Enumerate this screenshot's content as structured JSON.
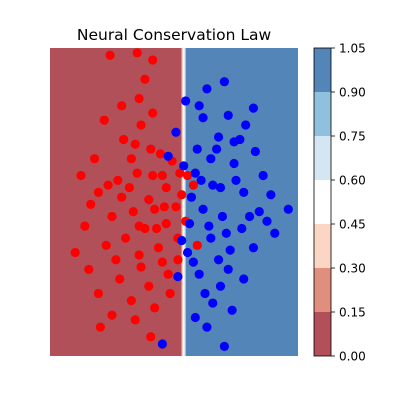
{
  "chart_data": {
    "type": "scatter",
    "title": "Neural Conservation Law",
    "xlabel": "",
    "ylabel": "",
    "xlim": [
      -3.2,
      3.2
    ],
    "ylim": [
      -3.2,
      3.2
    ],
    "axes_visible": false,
    "background": {
      "kind": "filled-contour",
      "boundary_x": 0.25,
      "transition_width": 0.12,
      "low_region": "left",
      "high_region": "right"
    },
    "colorbar": {
      "colormap": "RdBu",
      "levels": [
        0.0,
        0.15,
        0.3,
        0.45,
        0.6,
        0.75,
        0.9,
        1.05
      ],
      "tick_labels": [
        "0.00",
        "0.15",
        "0.30",
        "0.45",
        "0.60",
        "0.75",
        "0.90",
        "1.05"
      ],
      "band_colors": [
        "#b2505a",
        "#e08f7e",
        "#fbd6c4",
        "#ffffff",
        "#d4e6f1",
        "#8fc0dd",
        "#5485b8"
      ]
    },
    "colors": {
      "class_0": "#ff0000",
      "class_1": "#0000ff"
    },
    "series": [
      {
        "class": 0,
        "color": "#ff0000",
        "points": [
          [
            -1.65,
            3.05
          ],
          [
            -0.95,
            3.1
          ],
          [
            -0.55,
            2.95
          ],
          [
            -0.9,
            2.15
          ],
          [
            -1.8,
            1.7
          ],
          [
            -0.85,
            1.6
          ],
          [
            -0.55,
            1.85
          ],
          [
            -1.3,
            1.3
          ],
          [
            -0.35,
            1.0
          ],
          [
            -1.0,
            1.2
          ],
          [
            -0.2,
            0.3
          ],
          [
            -0.05,
            0.85
          ],
          [
            -0.55,
            0.55
          ],
          [
            -0.95,
            0.6
          ],
          [
            -1.45,
            0.45
          ],
          [
            -1.95,
            0.2
          ],
          [
            -2.15,
            -0.05
          ],
          [
            -1.6,
            -0.3
          ],
          [
            -1.05,
            -0.2
          ],
          [
            -0.5,
            -0.15
          ],
          [
            0.05,
            -0.1
          ],
          [
            -0.2,
            -0.45
          ],
          [
            -0.75,
            -0.55
          ],
          [
            -1.25,
            -0.75
          ],
          [
            -1.75,
            -0.9
          ],
          [
            -2.2,
            -1.4
          ],
          [
            -1.95,
            -1.9
          ],
          [
            -1.4,
            -1.6
          ],
          [
            -0.9,
            -1.1
          ],
          [
            -0.4,
            -0.95
          ],
          [
            0.1,
            -0.75
          ],
          [
            -0.15,
            -1.5
          ],
          [
            -0.65,
            -1.75
          ],
          [
            -1.1,
            -2.05
          ],
          [
            -1.6,
            -2.35
          ],
          [
            -1.0,
            -2.45
          ],
          [
            -0.5,
            -2.2
          ],
          [
            -0.1,
            -1.9
          ],
          [
            0.3,
            -0.4
          ],
          [
            0.2,
            0.15
          ],
          [
            -1.35,
            2.0
          ],
          [
            -2.05,
            0.9
          ],
          [
            -2.4,
            0.55
          ],
          [
            -0.65,
            0.05
          ],
          [
            -1.15,
            0.3
          ],
          [
            -0.3,
            0.55
          ],
          [
            0.35,
            0.55
          ],
          [
            0.6,
            -0.9
          ],
          [
            -0.3,
            -1.25
          ],
          [
            -1.7,
            0.35
          ],
          [
            -1.1,
            0.9
          ],
          [
            -0.6,
            1.1
          ],
          [
            -1.5,
            -1.2
          ],
          [
            -0.85,
            -1.35
          ],
          [
            -2.3,
            -0.5
          ],
          [
            -0.45,
            -0.55
          ],
          [
            -1.35,
            0.1
          ],
          [
            -0.9,
            -0.5
          ],
          [
            -0.25,
            -0.1
          ],
          [
            0.15,
            0.6
          ],
          [
            0.5,
            0.35
          ],
          [
            -0.6,
            -2.8
          ],
          [
            -1.9,
            -2.6
          ],
          [
            -2.55,
            -1.05
          ],
          [
            0.1,
            -1.2
          ],
          [
            -0.75,
            2.55
          ]
        ]
      },
      {
        "class": 1,
        "color": "#0000ff",
        "points": [
          [
            0.3,
            2.1
          ],
          [
            0.85,
            2.35
          ],
          [
            1.3,
            2.5
          ],
          [
            0.75,
            1.75
          ],
          [
            1.4,
            1.8
          ],
          [
            1.85,
            1.6
          ],
          [
            2.05,
            1.95
          ],
          [
            1.15,
            1.35
          ],
          [
            0.95,
            0.9
          ],
          [
            1.55,
            0.8
          ],
          [
            2.1,
            1.05
          ],
          [
            0.55,
            0.6
          ],
          [
            1.2,
            0.3
          ],
          [
            1.8,
            0.2
          ],
          [
            2.5,
            0.15
          ],
          [
            2.95,
            -0.15
          ],
          [
            2.4,
            -0.4
          ],
          [
            1.75,
            -0.55
          ],
          [
            1.25,
            -0.3
          ],
          [
            0.75,
            -0.15
          ],
          [
            0.4,
            -0.45
          ],
          [
            0.95,
            -0.75
          ],
          [
            1.45,
            -1.0
          ],
          [
            2.05,
            -0.95
          ],
          [
            1.8,
            -1.6
          ],
          [
            1.2,
            -1.75
          ],
          [
            0.65,
            -1.5
          ],
          [
            0.35,
            -1.05
          ],
          [
            1.0,
            -2.1
          ],
          [
            1.5,
            -2.25
          ],
          [
            0.55,
            -2.4
          ],
          [
            -0.3,
            -2.95
          ],
          [
            1.3,
            -3.0
          ],
          [
            0.05,
            1.45
          ],
          [
            0.6,
            1.1
          ],
          [
            1.0,
            0.35
          ],
          [
            1.6,
            0.45
          ],
          [
            2.2,
            -0.2
          ],
          [
            1.4,
            -1.4
          ],
          [
            0.8,
            -1.9
          ],
          [
            0.2,
            -0.8
          ],
          [
            0.45,
            0.1
          ],
          [
            1.1,
            1.1
          ],
          [
            1.7,
            1.3
          ],
          [
            0.9,
            -0.5
          ],
          [
            1.95,
            -0.3
          ],
          [
            2.6,
            -0.65
          ],
          [
            0.25,
            0.75
          ],
          [
            0.7,
            0.45
          ],
          [
            1.35,
            -0.65
          ],
          [
            0.5,
            -1.25
          ],
          [
            1.15,
            -1.2
          ],
          [
            -0.15,
            0.95
          ],
          [
            0.1,
            -1.55
          ],
          [
            1.55,
            1.25
          ],
          [
            0.65,
            2.0
          ],
          [
            2.3,
            0.55
          ],
          [
            0.85,
            -2.6
          ]
        ]
      }
    ]
  }
}
